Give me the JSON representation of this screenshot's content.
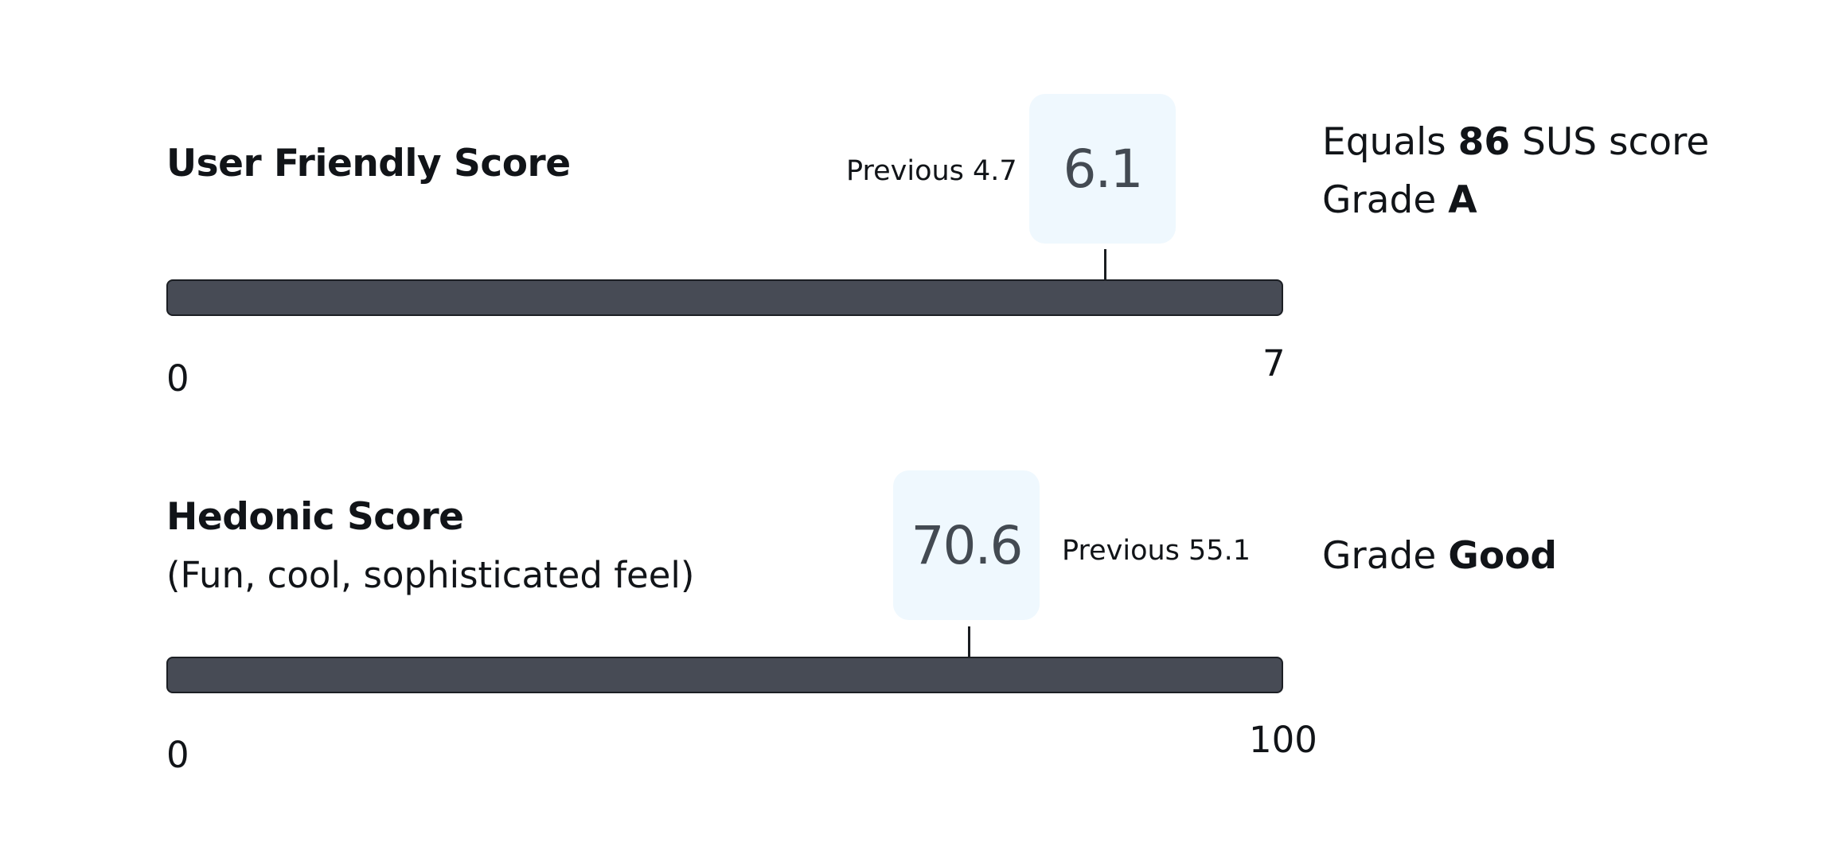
{
  "user_friendly": {
    "title": "User Friendly Score",
    "previous_label": "Previous 4.7",
    "score": "6.1",
    "score_value": 6.1,
    "scale_min": "0",
    "scale_max": "7",
    "sus_prefix": "Equals",
    "sus_value": "86",
    "sus_suffix": "SUS score",
    "grade_prefix": "Grade",
    "grade": "A"
  },
  "hedonic": {
    "title": "Hedonic Score",
    "subtitle": "(Fun, cool, sophisticated feel)",
    "previous_label": "Previous 55.1",
    "score": "70.6",
    "score_value": 70.6,
    "scale_min": "0",
    "scale_max": "100",
    "grade_prefix": "Grade",
    "grade": "Good"
  },
  "colors": {
    "bar": "#474b55",
    "score_box": "#eff8fe",
    "score_text": "#434a52"
  }
}
